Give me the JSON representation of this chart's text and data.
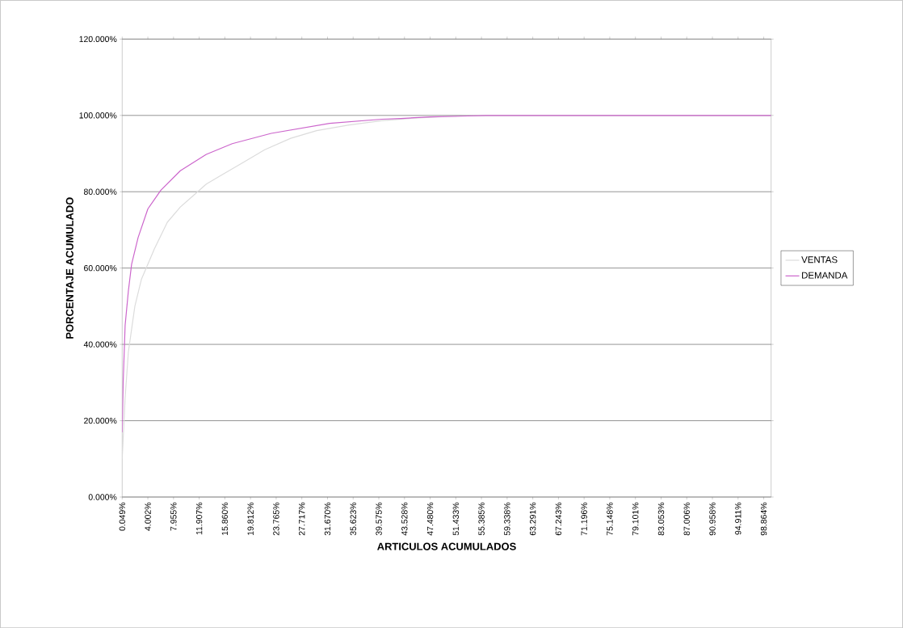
{
  "chart_data": {
    "type": "line",
    "xlabel": "ARTICULOS ACUMULADOS",
    "ylabel": "PORCENTAJE ACUMULADO",
    "xlim": [
      0.049,
      100
    ],
    "ylim": [
      0,
      120
    ],
    "xticks": [
      {
        "value": 0.049,
        "label": "0.049%"
      },
      {
        "value": 4.002,
        "label": "4.002%"
      },
      {
        "value": 7.955,
        "label": "7.955%"
      },
      {
        "value": 11.907,
        "label": "11.907%"
      },
      {
        "value": 15.86,
        "label": "15.860%"
      },
      {
        "value": 19.812,
        "label": "19.812%"
      },
      {
        "value": 23.765,
        "label": "23.765%"
      },
      {
        "value": 27.717,
        "label": "27.717%"
      },
      {
        "value": 31.67,
        "label": "31.670%"
      },
      {
        "value": 35.623,
        "label": "35.623%"
      },
      {
        "value": 39.575,
        "label": "39.575%"
      },
      {
        "value": 43.528,
        "label": "43.528%"
      },
      {
        "value": 47.48,
        "label": "47.480%"
      },
      {
        "value": 51.433,
        "label": "51.433%"
      },
      {
        "value": 55.385,
        "label": "55.385%"
      },
      {
        "value": 59.338,
        "label": "59.338%"
      },
      {
        "value": 63.291,
        "label": "63.291%"
      },
      {
        "value": 67.243,
        "label": "67.243%"
      },
      {
        "value": 71.196,
        "label": "71.196%"
      },
      {
        "value": 75.148,
        "label": "75.148%"
      },
      {
        "value": 79.101,
        "label": "79.101%"
      },
      {
        "value": 83.053,
        "label": "83.053%"
      },
      {
        "value": 87.006,
        "label": "87.006%"
      },
      {
        "value": 90.958,
        "label": "90.958%"
      },
      {
        "value": 94.911,
        "label": "94.911%"
      },
      {
        "value": 98.864,
        "label": "98.864%"
      }
    ],
    "yticks": [
      {
        "value": 0,
        "label": "0.000%"
      },
      {
        "value": 20,
        "label": "20.000%"
      },
      {
        "value": 40,
        "label": "40.000%"
      },
      {
        "value": 60,
        "label": "60.000%"
      },
      {
        "value": 80,
        "label": "80.000%"
      },
      {
        "value": 100,
        "label": "100.000%"
      },
      {
        "value": 120,
        "label": "120.000%"
      }
    ],
    "grid": "y",
    "legend": "right",
    "marker": "none",
    "line_style": "solid",
    "series": [
      {
        "name": "VENTAS",
        "color": "#dcdcdc",
        "x": [
          0.049,
          0.5,
          1,
          2,
          3,
          4.5,
          5,
          7,
          9,
          11,
          13,
          15,
          19,
          22,
          26,
          30,
          35,
          40,
          45,
          50,
          55,
          60,
          70,
          80,
          90,
          100
        ],
        "values": [
          10,
          26,
          38,
          50,
          57,
          63,
          65,
          72,
          76,
          79,
          82,
          84,
          88,
          91,
          94,
          96,
          97.5,
          98.6,
          99.3,
          99.7,
          100,
          100,
          100,
          100,
          100,
          100
        ]
      },
      {
        "name": "DEMANDA",
        "color": "#cc66cc",
        "x": [
          0.049,
          0.2,
          0.5,
          1,
          1.5,
          2.5,
          4,
          6,
          9,
          13,
          17,
          23,
          32,
          40,
          43,
          47.5,
          52,
          56,
          65,
          75,
          85,
          100
        ],
        "values": [
          17,
          30,
          45,
          54,
          61,
          68,
          75.5,
          80.4,
          85.5,
          89.8,
          92.6,
          95.3,
          97.9,
          99,
          99.2,
          99.6,
          99.8,
          100,
          100,
          100,
          100,
          100
        ]
      }
    ]
  }
}
